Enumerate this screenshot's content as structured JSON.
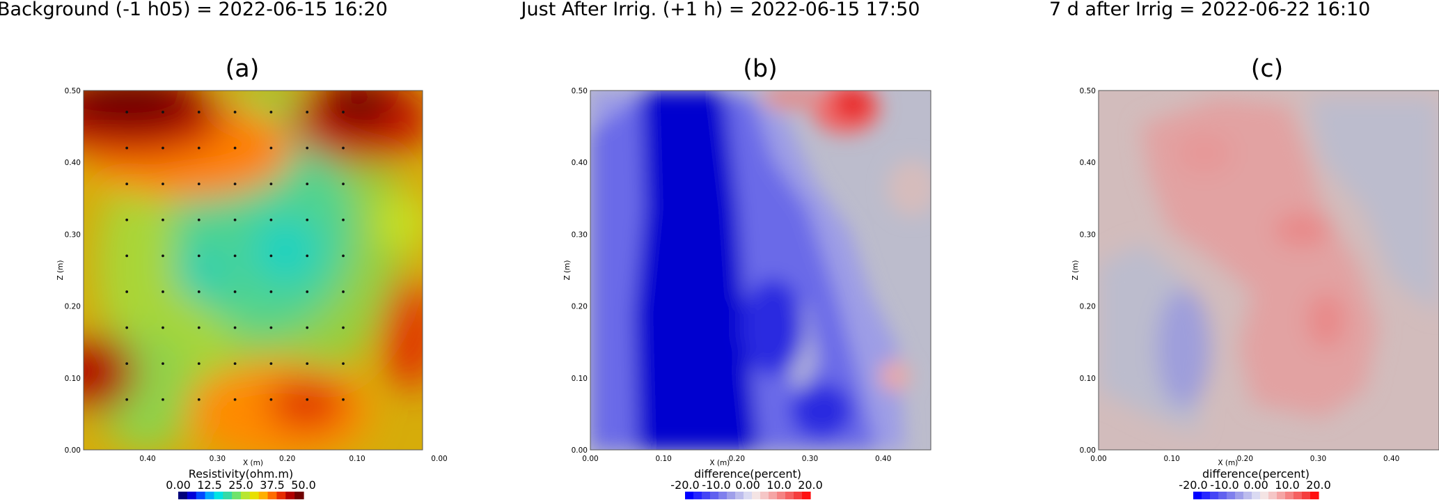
{
  "chart_data": [
    {
      "type": "heatmap",
      "heading": "Background (-1 h05) = 2022-06-15 16:20",
      "panel_label": "(a)",
      "xlabel": "X (m)",
      "ylabel": "Z (m)",
      "x_axis_reversed": true,
      "x_ticks": [
        "0.40",
        "0.30",
        "0.20",
        "0.10",
        "0.00"
      ],
      "y_ticks": [
        "0.00",
        "0.10",
        "0.20",
        "0.30",
        "0.40",
        "0.50"
      ],
      "colorbar": {
        "title": "Resistivity(ohm.m)",
        "tick_labels": [
          "0.00",
          "12.5",
          "25.0",
          "37.5",
          "50.0"
        ],
        "range": [
          0,
          50
        ],
        "colors": [
          "#00007a",
          "#0000d8",
          "#0049ff",
          "#00a7ff",
          "#00e3e3",
          "#36d9a6",
          "#6fe36b",
          "#b7e632",
          "#e8e000",
          "#ffb000",
          "#ff6d00",
          "#e62c00",
          "#b00000",
          "#700000"
        ]
      },
      "electrodes": {
        "x": [
          0.11,
          0.16,
          0.21,
          0.26,
          0.31,
          0.36,
          0.41
        ],
        "z": [
          0.07,
          0.12,
          0.17,
          0.22,
          0.27,
          0.32,
          0.37,
          0.42,
          0.47
        ]
      }
    },
    {
      "type": "heatmap",
      "heading": "Just After Irrig. (+1 h) = 2022-06-15 17:50",
      "panel_label": "(b)",
      "xlabel": "X (m)",
      "ylabel": "Z (m)",
      "x_ticks": [
        "0.00",
        "0.10",
        "0.20",
        "0.30",
        "0.40"
      ],
      "y_ticks": [
        "0.00",
        "0.10",
        "0.20",
        "0.30",
        "0.40",
        "0.50"
      ],
      "colorbar": {
        "title": "difference(percent)",
        "tick_labels": [
          "-20.0",
          "-10.0",
          "0.00",
          "10.0",
          "20.0"
        ],
        "range": [
          -20,
          20
        ],
        "colors": [
          "#0000ff",
          "#2626ff",
          "#4545f5",
          "#6161ef",
          "#7f7fed",
          "#9f9fea",
          "#bdbded",
          "#dadaf2",
          "#f4e4e4",
          "#f5c6c6",
          "#f5a5a5",
          "#f58383",
          "#f56060",
          "#f53d3d",
          "#ff1010"
        ]
      }
    },
    {
      "type": "heatmap",
      "heading": "7 d after Irrig = 2022-06-22 16:10",
      "panel_label": "(c)",
      "xlabel": "X (m)",
      "ylabel": "Z (m)",
      "x_ticks": [
        "0.00",
        "0.10",
        "0.20",
        "0.30",
        "0.40"
      ],
      "y_ticks": [
        "0.00",
        "0.10",
        "0.20",
        "0.30",
        "0.40",
        "0.50"
      ],
      "colorbar": {
        "title": "difference(percent)",
        "tick_labels": [
          "-20.0",
          "-10.0",
          "0.00",
          "10.0",
          "20.0"
        ],
        "range": [
          -20,
          20
        ],
        "colors": [
          "#0000ff",
          "#2626ff",
          "#4545f5",
          "#6161ef",
          "#7f7fed",
          "#9f9fea",
          "#bdbded",
          "#dadaf2",
          "#f4e4e4",
          "#f5c6c6",
          "#f5a5a5",
          "#f58383",
          "#f56060",
          "#f53d3d",
          "#ff1010"
        ]
      }
    }
  ]
}
